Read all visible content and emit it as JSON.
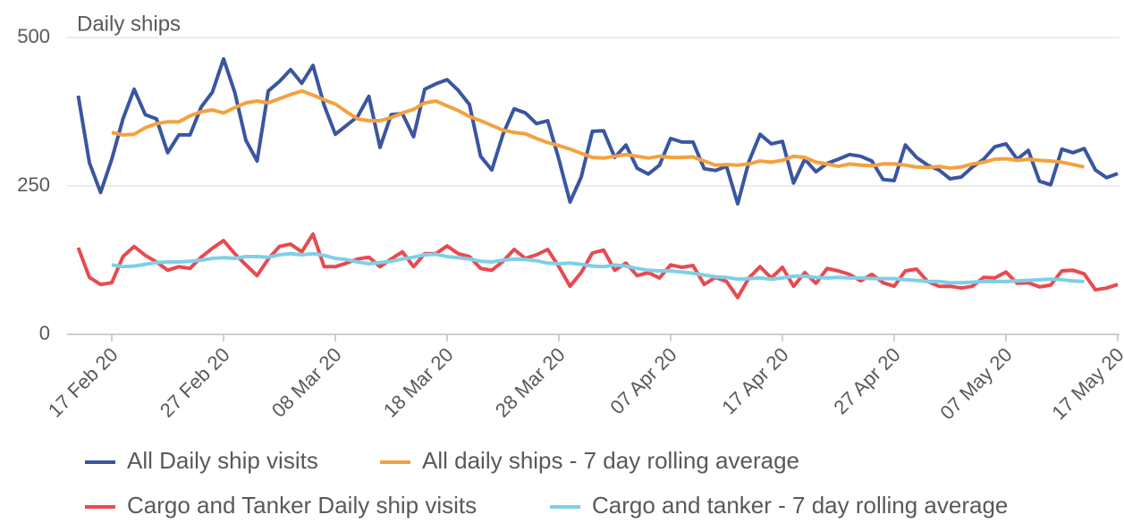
{
  "chart_data": {
    "type": "line",
    "title": "Daily ships",
    "categories": [
      null,
      null,
      null,
      "17 Feb 20",
      null,
      null,
      null,
      null,
      null,
      null,
      null,
      null,
      null,
      "27 Feb 20",
      null,
      null,
      null,
      null,
      null,
      null,
      null,
      null,
      null,
      "08 Mar 20",
      null,
      null,
      null,
      null,
      null,
      null,
      null,
      null,
      null,
      "18 Mar 20",
      null,
      null,
      null,
      null,
      null,
      null,
      null,
      null,
      null,
      "28 Mar 20",
      null,
      null,
      null,
      null,
      null,
      null,
      null,
      null,
      null,
      "07 Apr 20",
      null,
      null,
      null,
      null,
      null,
      null,
      null,
      null,
      null,
      "17 Apr 20",
      null,
      null,
      null,
      null,
      null,
      null,
      null,
      null,
      null,
      "27 Apr 20",
      null,
      null,
      null,
      null,
      null,
      null,
      null,
      null,
      null,
      "07 May 20",
      null,
      null,
      null,
      null,
      null,
      null,
      null,
      null,
      null,
      "17 May 20"
    ],
    "ylim": [
      0,
      500
    ],
    "yticks": [
      0,
      250,
      500
    ],
    "grid": true,
    "series": [
      {
        "name": "All Daily ship visits",
        "color": "#3a56a0",
        "values": [
          402,
          289,
          239,
          295,
          363,
          413,
          370,
          363,
          306,
          336,
          336,
          383,
          408,
          464,
          408,
          327,
          292,
          410,
          426,
          446,
          423,
          453,
          386,
          337,
          352,
          367,
          401,
          315,
          370,
          372,
          333,
          413,
          422,
          429,
          411,
          387,
          300,
          277,
          337,
          380,
          373,
          355,
          360,
          295,
          223,
          265,
          342,
          343,
          298,
          319,
          280,
          270,
          285,
          330,
          324,
          324,
          279,
          276,
          283,
          220,
          291,
          337,
          321,
          325,
          255,
          295,
          274,
          288,
          295,
          303,
          300,
          292,
          261,
          259,
          319,
          298,
          285,
          277,
          262,
          265,
          282,
          295,
          316,
          321,
          295,
          310,
          258,
          252,
          312,
          306,
          313,
          277,
          264,
          271
        ]
      },
      {
        "name": "All daily ships - 7 day rolling average",
        "color": "#f4a13f",
        "values": [
          null,
          null,
          null,
          340,
          336,
          337,
          348,
          355,
          358,
          358,
          368,
          375,
          378,
          373,
          382,
          390,
          393,
          390,
          397,
          404,
          410,
          403,
          395,
          388,
          375,
          363,
          360,
          360,
          365,
          373,
          379,
          390,
          393,
          385,
          377,
          367,
          360,
          352,
          344,
          340,
          338,
          330,
          323,
          318,
          312,
          305,
          298,
          297,
          300,
          303,
          300,
          297,
          300,
          298,
          298,
          299,
          292,
          285,
          286,
          285,
          287,
          292,
          290,
          293,
          300,
          298,
          290,
          287,
          283,
          287,
          285,
          284,
          287,
          287,
          285,
          282,
          281,
          283,
          280,
          282,
          287,
          290,
          295,
          296,
          293,
          295,
          293,
          292,
          290,
          286,
          282,
          null,
          null,
          null
        ]
      },
      {
        "name": "Cargo and Tanker Daily ship visits",
        "color": "#e84a4f",
        "values": [
          146,
          96,
          84,
          87,
          131,
          148,
          133,
          122,
          108,
          114,
          111,
          130,
          145,
          158,
          136,
          117,
          99,
          127,
          148,
          152,
          139,
          169,
          114,
          114,
          120,
          127,
          130,
          114,
          127,
          139,
          114,
          136,
          136,
          149,
          136,
          131,
          111,
          108,
          123,
          143,
          128,
          134,
          143,
          114,
          81,
          104,
          137,
          142,
          108,
          120,
          99,
          104,
          95,
          117,
          113,
          116,
          84,
          96,
          89,
          62,
          95,
          114,
          95,
          113,
          81,
          104,
          86,
          111,
          107,
          101,
          90,
          101,
          87,
          81,
          107,
          110,
          89,
          81,
          81,
          78,
          81,
          96,
          95,
          105,
          86,
          87,
          80,
          83,
          107,
          108,
          102,
          75,
          78,
          84
        ]
      },
      {
        "name": "Cargo and tanker - 7 day rolling average",
        "color": "#7ecfe8",
        "values": [
          null,
          null,
          null,
          117,
          114,
          115,
          118,
          121,
          122,
          122,
          123,
          125,
          128,
          129,
          128,
          131,
          131,
          130,
          134,
          136,
          134,
          136,
          133,
          128,
          126,
          122,
          119,
          121,
          123,
          127,
          130,
          134,
          135,
          131,
          129,
          127,
          123,
          122,
          125,
          127,
          126,
          124,
          120,
          119,
          120,
          118,
          115,
          114,
          117,
          115,
          111,
          108,
          107,
          107,
          105,
          103,
          100,
          97,
          96,
          93,
          94,
          95,
          93,
          95,
          98,
          98,
          96,
          95,
          96,
          95,
          95,
          94,
          94,
          94,
          92,
          91,
          89,
          89,
          87,
          87,
          88,
          89,
          89,
          89,
          90,
          91,
          92,
          93,
          92,
          90,
          89,
          null,
          null,
          null
        ]
      }
    ]
  }
}
